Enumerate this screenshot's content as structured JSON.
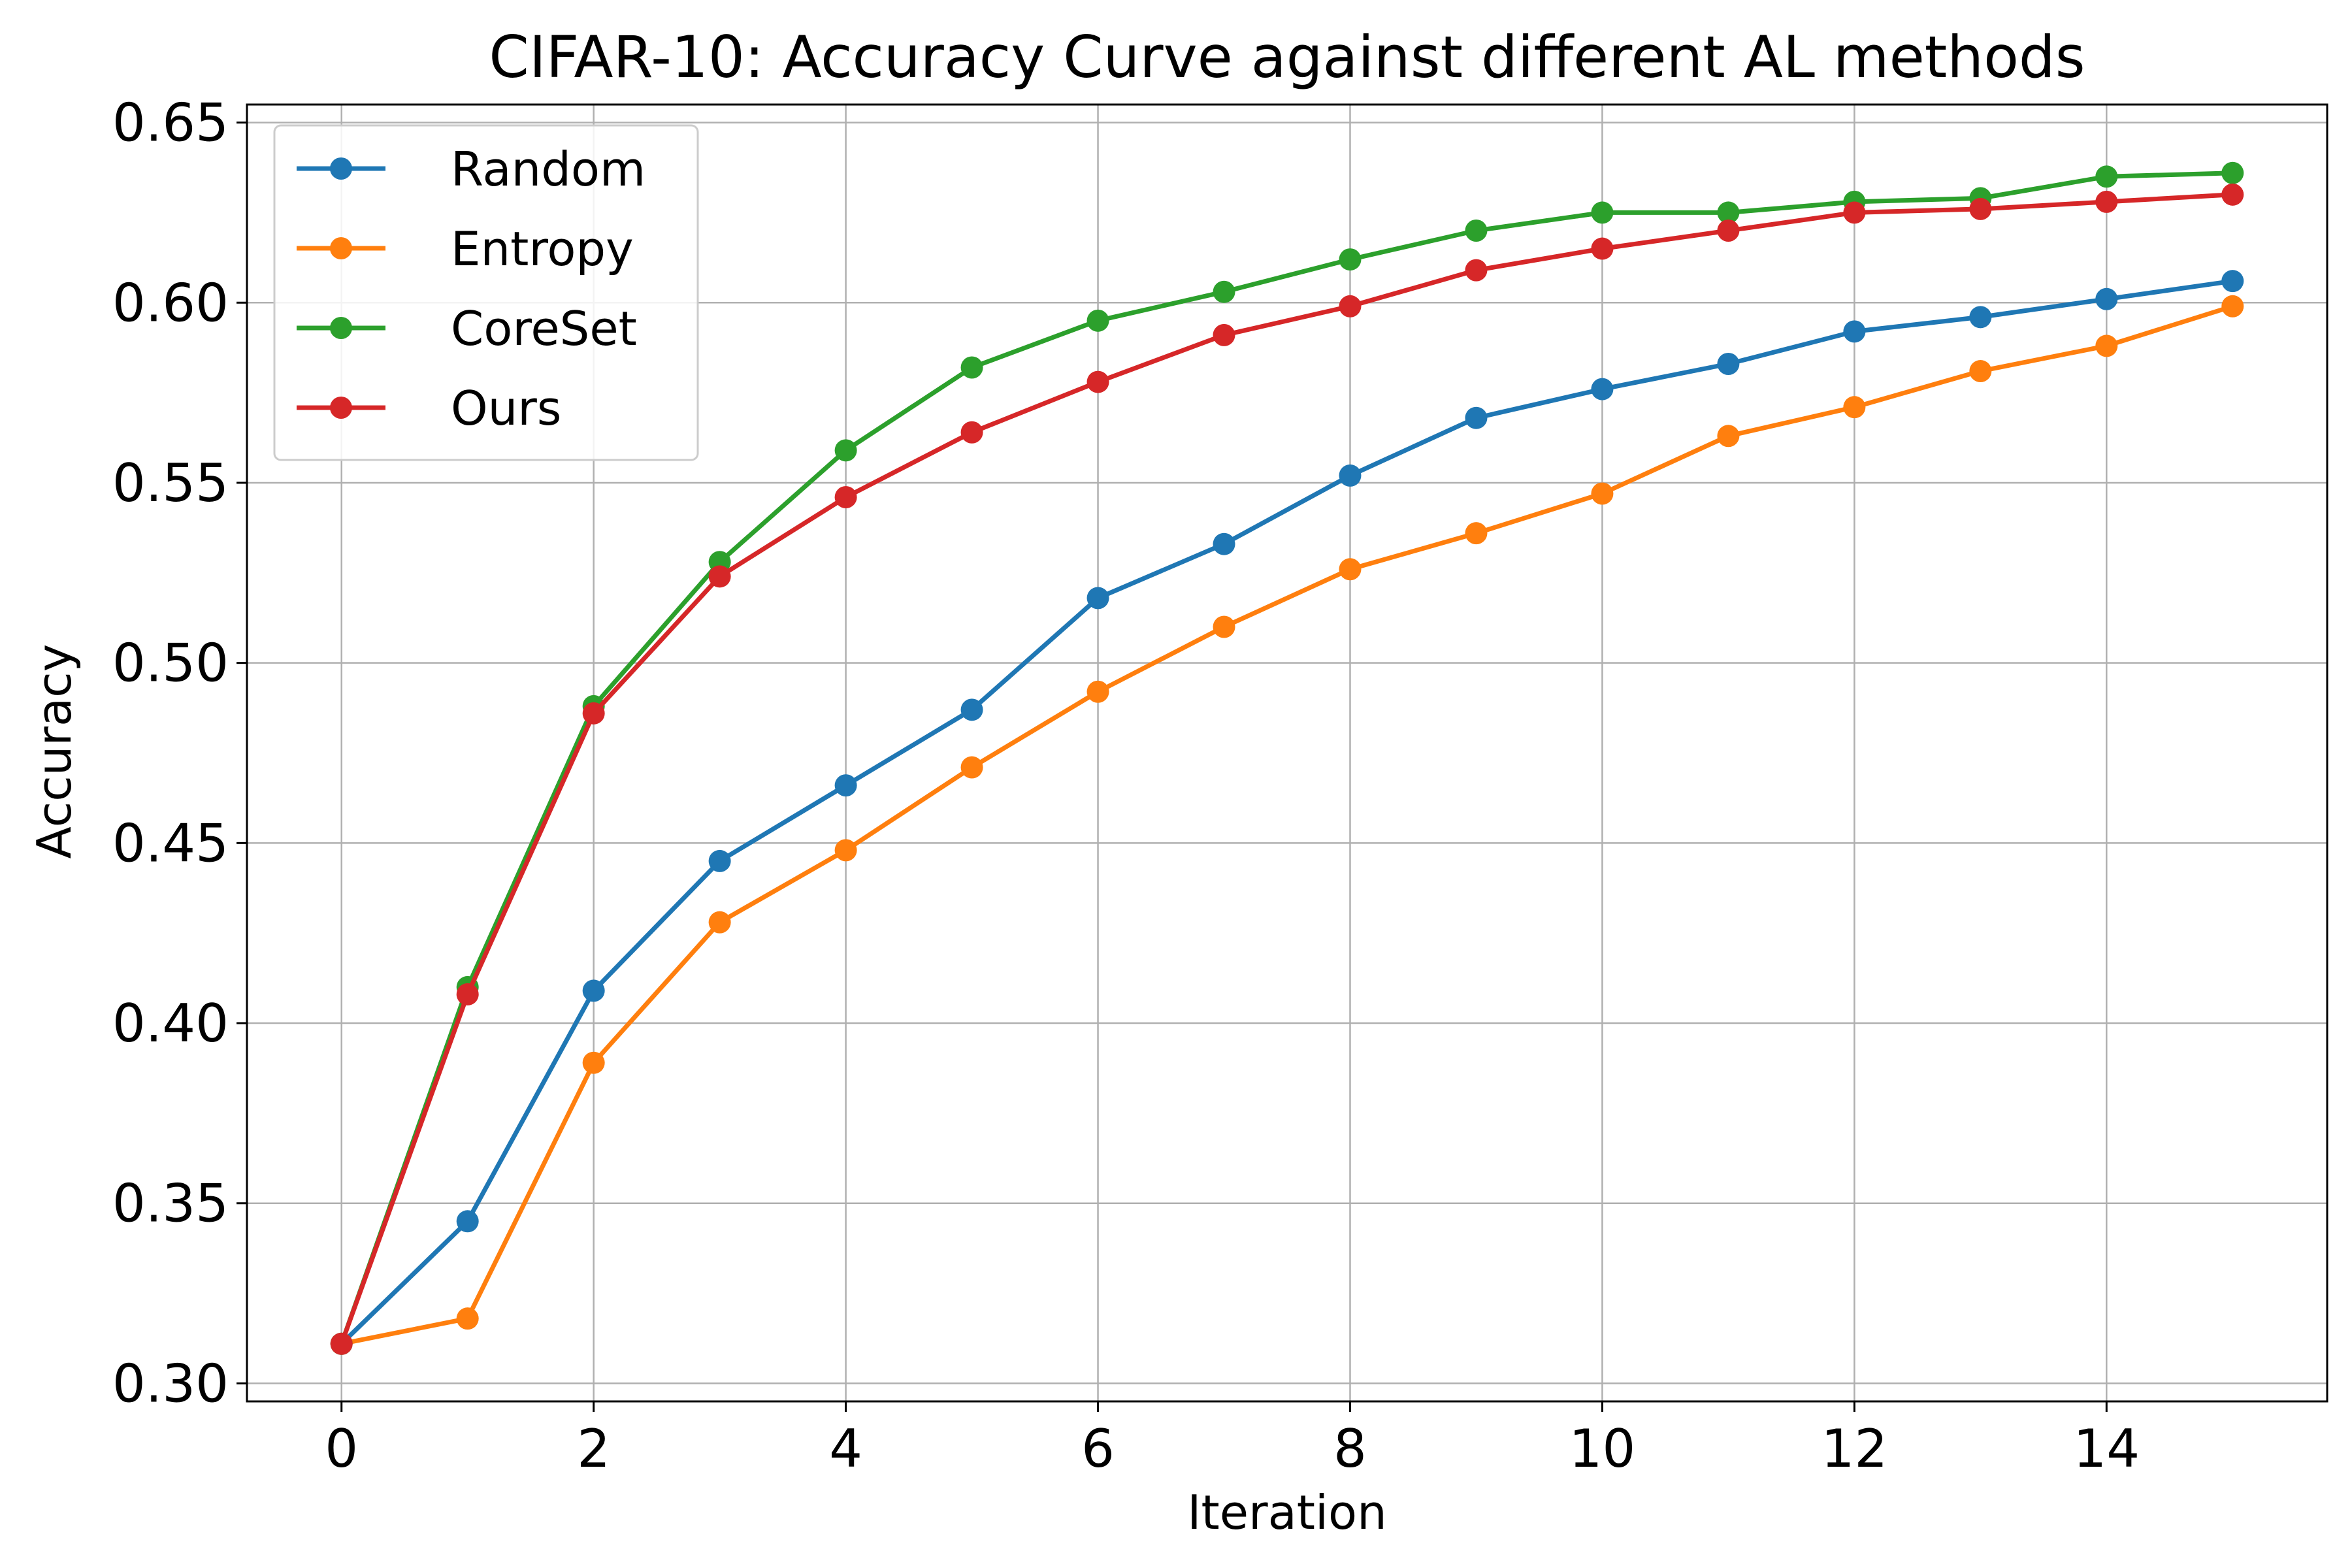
{
  "chart_data": {
    "type": "line",
    "title": "CIFAR-10: Accuracy Curve against different AL methods",
    "xlabel": "Iteration",
    "ylabel": "Accuracy",
    "xlim": [
      -0.75,
      15.75
    ],
    "ylim": [
      0.295,
      0.655
    ],
    "xticks": [
      0,
      2,
      4,
      6,
      8,
      10,
      12,
      14
    ],
    "xtick_labels": [
      "0",
      "2",
      "4",
      "6",
      "8",
      "10",
      "12",
      "14"
    ],
    "yticks": [
      0.3,
      0.35,
      0.4,
      0.45,
      0.5,
      0.55,
      0.6,
      0.65
    ],
    "ytick_labels": [
      "0.30",
      "0.35",
      "0.40",
      "0.45",
      "0.50",
      "0.55",
      "0.60",
      "0.65"
    ],
    "grid": true,
    "legend_position": "top-left",
    "x": [
      0,
      1,
      2,
      3,
      4,
      5,
      6,
      7,
      8,
      9,
      10,
      11,
      12,
      13,
      14,
      15
    ],
    "series": [
      {
        "name": "Random",
        "color": "#1f77b4",
        "values": [
          0.311,
          0.345,
          0.409,
          0.445,
          0.466,
          0.487,
          0.518,
          0.533,
          0.552,
          0.568,
          0.576,
          0.583,
          0.592,
          0.596,
          0.601,
          0.606
        ]
      },
      {
        "name": "Entropy",
        "color": "#ff7f0e",
        "values": [
          0.311,
          0.318,
          0.389,
          0.428,
          0.448,
          0.471,
          0.492,
          0.51,
          0.526,
          0.536,
          0.547,
          0.563,
          0.571,
          0.581,
          0.588,
          0.599
        ]
      },
      {
        "name": "CoreSet",
        "color": "#2ca02c",
        "values": [
          0.311,
          0.41,
          0.488,
          0.528,
          0.559,
          0.582,
          0.595,
          0.603,
          0.612,
          0.62,
          0.625,
          0.625,
          0.628,
          0.629,
          0.635,
          0.636
        ]
      },
      {
        "name": "Ours",
        "color": "#d62728",
        "values": [
          0.311,
          0.408,
          0.486,
          0.524,
          0.546,
          0.564,
          0.578,
          0.591,
          0.599,
          0.609,
          0.615,
          0.62,
          0.625,
          0.626,
          0.628,
          0.63
        ]
      }
    ]
  }
}
